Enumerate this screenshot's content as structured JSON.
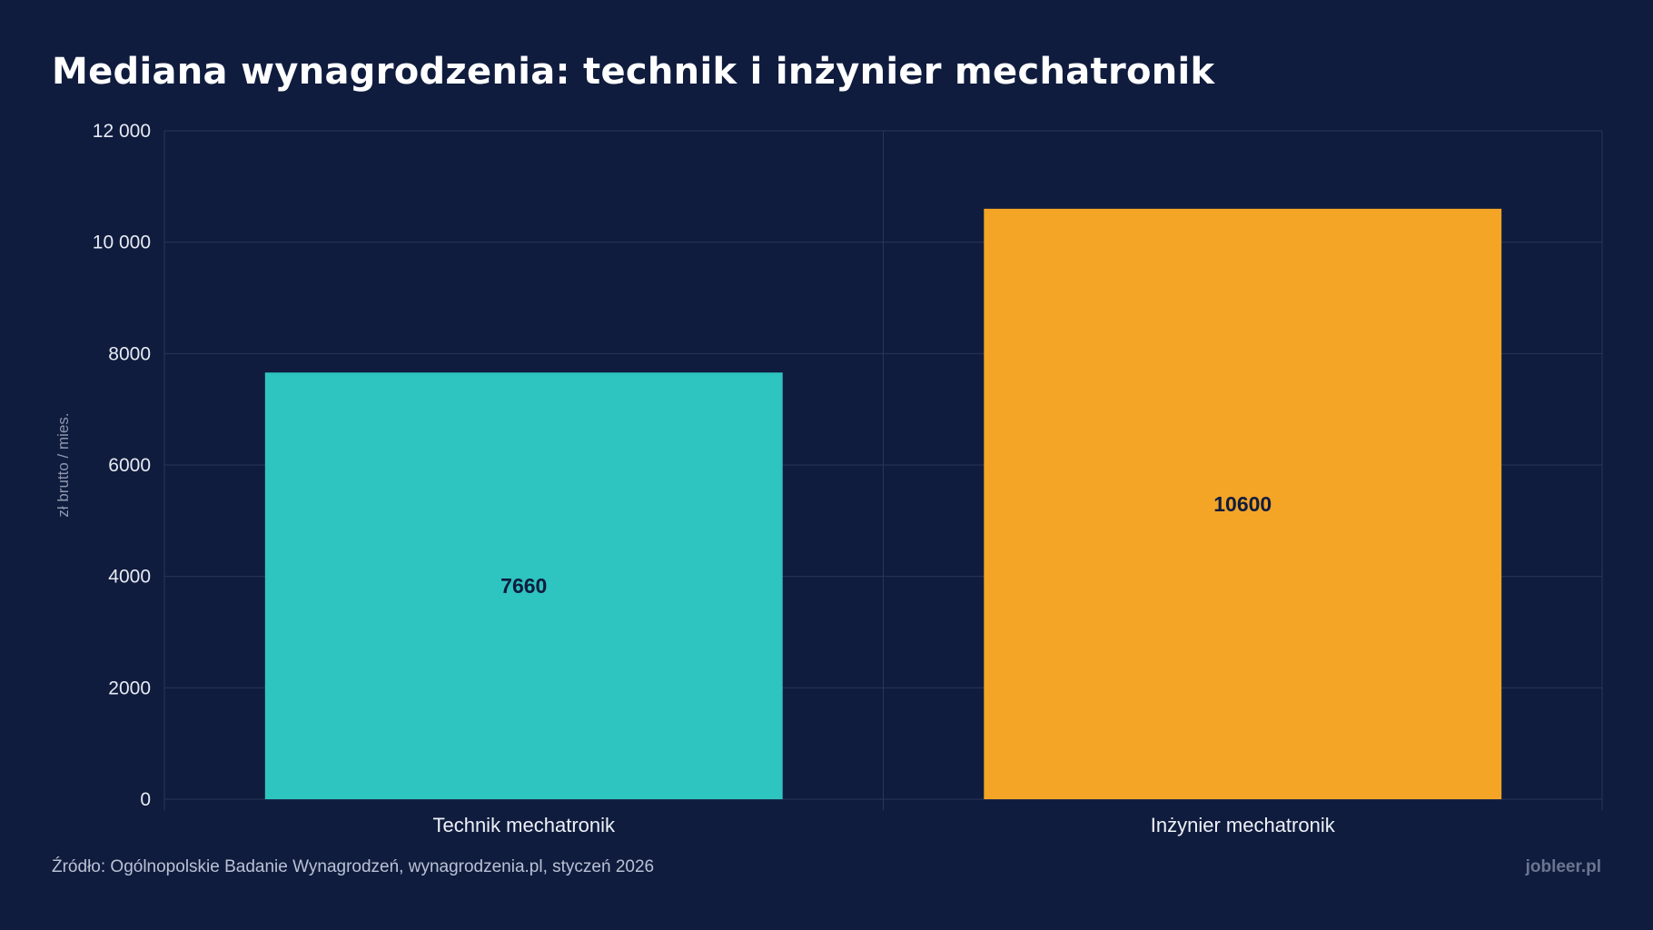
{
  "page": {
    "title": "Mediana wynagrodzenia: technik i inżynier mechatronik",
    "source": "Źródło: Ogólnopolskie Badanie Wynagrodzeń, wynagrodzenia.pl, styczeń 2026",
    "brand": "jobleer.pl"
  },
  "colors": {
    "background": "#101c3e",
    "grid": "#2a3658",
    "bar_technik": "#2ec4c0",
    "bar_inzynier": "#f4a526",
    "value_text": "#101c3e"
  },
  "chart_data": {
    "type": "bar",
    "categories": [
      "Technik mechatronik",
      "Inżynier mechatronik"
    ],
    "values": [
      7660,
      10600
    ],
    "bar_colors": [
      "#2ec4c0",
      "#f4a526"
    ],
    "data_labels": [
      "7660",
      "10600"
    ],
    "title": "Mediana wynagrodzenia: technik i inżynier mechatronik",
    "xlabel": "",
    "ylabel": "zł brutto / mies.",
    "ylim": [
      0,
      12000
    ],
    "yticks": [
      0,
      2000,
      4000,
      6000,
      8000,
      10000,
      12000
    ],
    "ytick_labels": [
      "0",
      "2000",
      "4000",
      "6000",
      "8000",
      "10 000",
      "12 000"
    ],
    "grid": true,
    "legend": "none"
  }
}
